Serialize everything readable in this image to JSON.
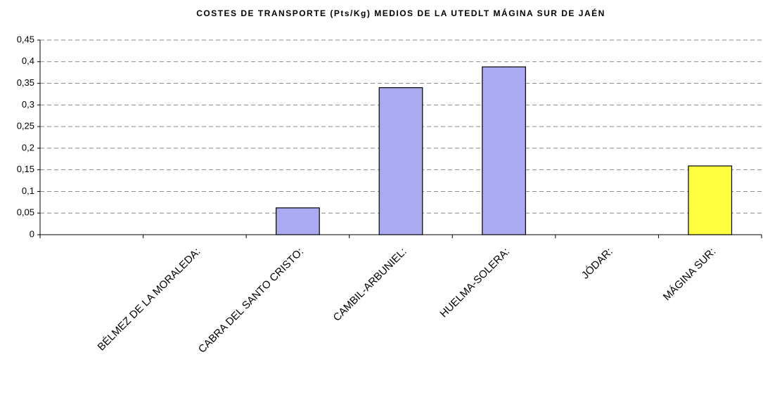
{
  "chart_data": {
    "type": "bar",
    "title": "COSTES DE TRANSPORTE (Pts/Kg) MEDIOS DE LA UTEDLT MÁGINA SUR DE JAÉN",
    "categories": [
      null,
      "BÉLMEZ DE LA MORALEDA:",
      "CABRA DEL SANTO CRISTO:",
      "CAMBIL-ARBUNIEL:",
      "HUELMA-SOLERA:",
      "JÓDAR:",
      "MÁGINA SUR:"
    ],
    "values": [
      null,
      0,
      0.062,
      0.34,
      0.388,
      0,
      0.159
    ],
    "colors": [
      "#a9aaf0",
      "#a9aaf0",
      "#a9aaf0",
      "#a9aaf0",
      "#a9aaf0",
      "#a9aaf0",
      "#ffff40"
    ],
    "ylim": [
      0,
      0.45
    ],
    "yticks": [
      0,
      {
        "value": 0.05,
        "label": "0,05"
      },
      {
        "value": 0.1,
        "label": "0,1"
      },
      {
        "value": 0.15,
        "label": "0,15"
      },
      {
        "value": 0.2,
        "label": "0,2"
      },
      {
        "value": 0.25,
        "label": "0,25"
      },
      {
        "value": 0.3,
        "label": "0,3"
      },
      {
        "value": 0.35,
        "label": "0,35"
      },
      {
        "value": 0.4,
        "label": "0,4"
      },
      {
        "value": 0.45,
        "label": "0,45"
      }
    ],
    "grid": true
  }
}
